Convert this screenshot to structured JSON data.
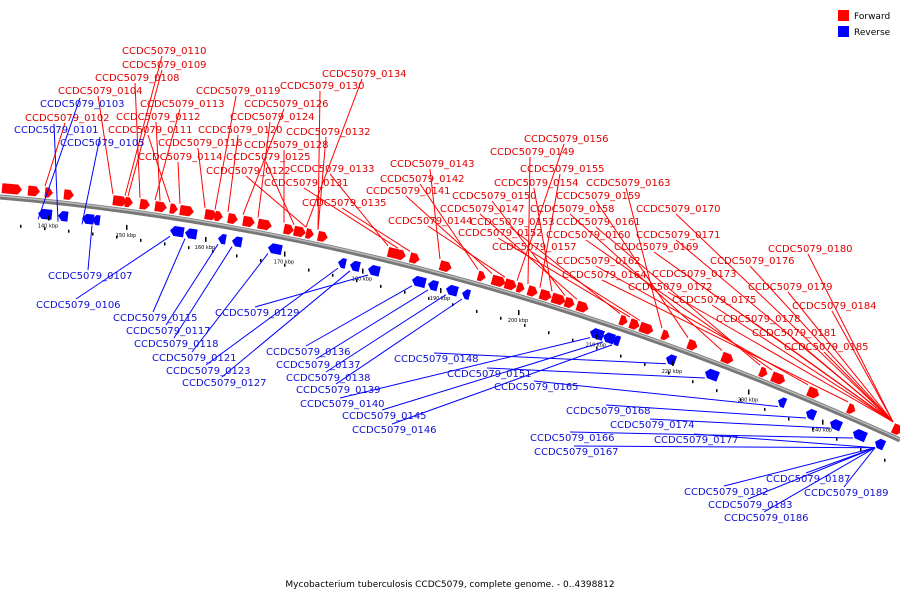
{
  "legend": {
    "forward_label": "Forward",
    "reverse_label": "Reverse",
    "forward_color": "#ff0000",
    "reverse_color": "#0000ff"
  },
  "caption": "Mycobacterium tuberculosis CCDC5079, complete genome. - 0..4398812",
  "ticks": [
    "140 kbp",
    "150 kbp",
    "160 kbp",
    "170 kbp",
    "180 kbp",
    "190 kbp",
    "200 kbp",
    "210 kbp",
    "220 kbp",
    "230 kbp",
    "240 kbp"
  ],
  "forward_labels": [
    "CCDC5079_0110",
    "CCDC5079_0109",
    "CCDC5079_0108",
    "CCDC5079_0104",
    "CCDC5079_0102",
    "CCDC5079_0113",
    "CCDC5079_0112",
    "CCDC5079_0111",
    "CCDC5079_0116",
    "CCDC5079_0114",
    "CCDC5079_0119",
    "CCDC5079_0126",
    "CCDC5079_0124",
    "CCDC5079_0120",
    "CCDC5079_0128",
    "CCDC5079_0125",
    "CCDC5079_0122",
    "CCDC5079_0134",
    "CCDC5079_0130",
    "CCDC5079_0132",
    "CCDC5079_0133",
    "CCDC5079_0131",
    "CCDC5079_0135",
    "CCDC5079_0143",
    "CCDC5079_0142",
    "CCDC5079_0141",
    "CCDC5079_0144",
    "CCDC5079_0156",
    "CCDC5079_0149",
    "CCDC5079_0155",
    "CCDC5079_0154",
    "CCDC5079_0150",
    "CCDC5079_0147",
    "CCDC5079_0153",
    "CCDC5079_0152",
    "CCDC5079_0157",
    "CCDC5079_0163",
    "CCDC5079_0159",
    "CCDC5079_0158",
    "CCDC5079_0161",
    "CCDC5079_0160",
    "CCDC5079_0162",
    "CCDC5079_0164",
    "CCDC5079_0170",
    "CCDC5079_0171",
    "CCDC5079_0169",
    "CCDC5079_0173",
    "CCDC5079_0172",
    "CCDC5079_0175",
    "CCDC5079_0176",
    "CCDC5079_0180",
    "CCDC5079_0179",
    "CCDC5079_0184",
    "CCDC5079_0178",
    "CCDC5079_0181",
    "CCDC5079_0185"
  ],
  "reverse_labels": [
    "CCDC5079_0103",
    "CCDC5079_0101",
    "CCDC5079_0105",
    "CCDC5079_0107",
    "CCDC5079_0106",
    "CCDC5079_0115",
    "CCDC5079_0117",
    "CCDC5079_0118",
    "CCDC5079_0121",
    "CCDC5079_0123",
    "CCDC5079_0127",
    "CCDC5079_0129",
    "CCDC5079_0136",
    "CCDC5079_0137",
    "CCDC5079_0138",
    "CCDC5079_0139",
    "CCDC5079_0140",
    "CCDC5079_0145",
    "CCDC5079_0146",
    "CCDC5079_0148",
    "CCDC5079_0151",
    "CCDC5079_0165",
    "CCDC5079_0168",
    "CCDC5079_0174",
    "CCDC5079_0166",
    "CCDC5079_0167",
    "CCDC5079_0177",
    "CCDC5079_0187",
    "CCDC5079_0182",
    "CCDC5079_0189",
    "CCDC5079_0183",
    "CCDC5079_0186"
  ]
}
